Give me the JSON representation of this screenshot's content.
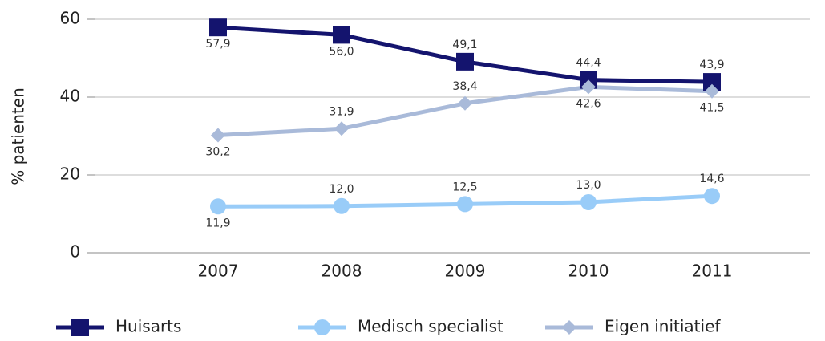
{
  "chart_data": {
    "type": "line",
    "y_label": "% patienten",
    "categories": [
      "2007",
      "2008",
      "2009",
      "2010",
      "2011"
    ],
    "series": [
      {
        "name": "Huisarts",
        "color": "#14146e",
        "marker": "square",
        "values": [
          57.9,
          56.0,
          49.1,
          44.4,
          43.9
        ],
        "value_labels": [
          "57,9",
          "56,0",
          "49,1",
          "44,4",
          "43,9"
        ]
      },
      {
        "name": "Medisch specialist",
        "color": "#99ccf8",
        "marker": "circle",
        "values": [
          11.9,
          12.0,
          12.5,
          13.0,
          14.6
        ],
        "value_labels": [
          "11,9",
          "12,0",
          "12,5",
          "13,0",
          "14,6"
        ]
      },
      {
        "name": "Eigen initiatief",
        "color": "#a9bad9",
        "marker": "diamond",
        "values": [
          30.2,
          31.9,
          38.4,
          42.6,
          41.5
        ],
        "value_labels": [
          "30,2",
          "31,9",
          "38,4",
          "42,6",
          "41,5"
        ]
      }
    ],
    "ylim": [
      0,
      60
    ],
    "yticks": [
      0,
      20,
      40,
      60
    ],
    "grid": true
  }
}
